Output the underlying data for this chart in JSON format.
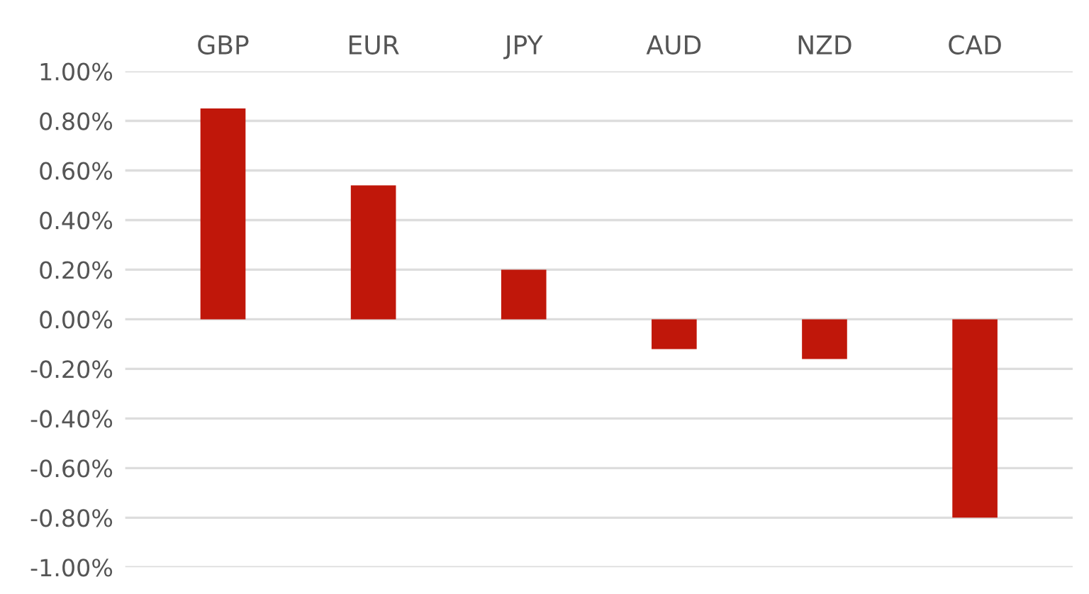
{
  "chart_data": {
    "type": "bar",
    "categories": [
      "GBP",
      "EUR",
      "JPY",
      "AUD",
      "NZD",
      "CAD"
    ],
    "values": [
      0.85,
      0.54,
      0.2,
      -0.12,
      -0.16,
      -0.8
    ],
    "color": "#c0170a",
    "ylim": [
      -1.0,
      1.0
    ],
    "yticks": [
      {
        "value": 1.0,
        "label": "1.00%"
      },
      {
        "value": 0.8,
        "label": "0.80%"
      },
      {
        "value": 0.6,
        "label": "0.60%"
      },
      {
        "value": 0.4,
        "label": "0.40%"
      },
      {
        "value": 0.2,
        "label": "0.20%"
      },
      {
        "value": 0.0,
        "label": "0.00%"
      },
      {
        "value": -0.2,
        "label": "-0.20%"
      },
      {
        "value": -0.4,
        "label": "-0.40%"
      },
      {
        "value": -0.6,
        "label": "-0.60%"
      },
      {
        "value": -0.8,
        "label": "-0.80%"
      },
      {
        "value": -1.0,
        "label": "-1.00%"
      }
    ],
    "grid": "y"
  }
}
